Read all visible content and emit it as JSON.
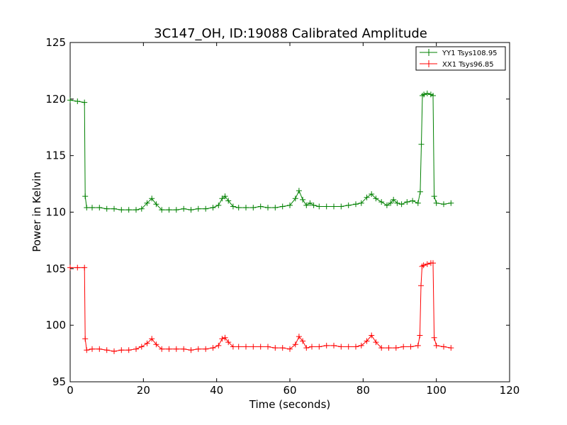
{
  "chart_data": {
    "type": "line",
    "title": "3C147_OH, ID:19088 Calibrated Amplitude",
    "xlabel": "Time (seconds)",
    "ylabel": "Power in Kelvin",
    "xlim": [
      0,
      120
    ],
    "ylim": [
      95,
      125
    ],
    "xticks": [
      "0",
      "20",
      "40",
      "60",
      "80",
      "100",
      "120"
    ],
    "yticks": [
      "95",
      "100",
      "105",
      "110",
      "115",
      "120",
      "125"
    ],
    "grid": false,
    "legend_position": "top-right",
    "marker": "+",
    "series": [
      {
        "name": "YY1 Tsys108.95",
        "color": "#008000",
        "x": [
          0,
          2,
          3.9,
          4.1,
          4.5,
          6,
          8,
          10,
          12,
          14,
          16,
          18,
          19.5,
          21,
          22.3,
          23.5,
          25,
          27,
          29,
          31,
          33,
          35,
          37,
          39,
          40.5,
          41.5,
          42.3,
          43.2,
          44.5,
          46,
          48,
          50,
          52,
          54,
          56,
          58,
          60,
          61.5,
          62.5,
          63.5,
          64.5,
          65.5,
          66.5,
          68,
          70,
          72,
          74,
          76,
          78,
          79.5,
          81,
          82.3,
          83.5,
          85,
          86.5,
          87.5,
          88.3,
          89.3,
          90.5,
          92,
          93.5,
          95,
          95.6,
          95.9,
          96.2,
          96.6,
          97.5,
          98.5,
          99.1,
          99.4,
          100,
          102,
          104
        ],
        "values": [
          119.9,
          119.8,
          119.7,
          111.4,
          110.4,
          110.4,
          110.4,
          110.3,
          110.3,
          110.2,
          110.2,
          110.2,
          110.3,
          110.8,
          111.2,
          110.7,
          110.2,
          110.2,
          110.2,
          110.3,
          110.2,
          110.3,
          110.3,
          110.4,
          110.6,
          111.2,
          111.4,
          111.0,
          110.5,
          110.4,
          110.4,
          110.4,
          110.5,
          110.4,
          110.4,
          110.5,
          110.6,
          111.2,
          111.9,
          111.1,
          110.6,
          110.8,
          110.6,
          110.5,
          110.5,
          110.5,
          110.5,
          110.6,
          110.7,
          110.8,
          111.3,
          111.6,
          111.2,
          110.9,
          110.6,
          110.8,
          111.1,
          110.8,
          110.7,
          110.9,
          111.0,
          110.8,
          111.8,
          116.0,
          120.3,
          120.4,
          120.5,
          120.4,
          120.3,
          111.4,
          110.8,
          110.7,
          110.8
        ]
      },
      {
        "name": "XX1 Tsys96.85",
        "color": "#ff0000",
        "x": [
          0,
          2,
          3.9,
          4.1,
          4.5,
          6,
          8,
          10,
          12,
          14,
          16,
          18,
          19.5,
          21,
          22.3,
          23.5,
          25,
          27,
          29,
          31,
          33,
          35,
          37,
          39,
          40.5,
          41.5,
          42.3,
          43.2,
          44.5,
          46,
          48,
          50,
          52,
          54,
          56,
          58,
          60,
          61.5,
          62.5,
          63.5,
          64.5,
          66,
          68,
          70,
          72,
          74,
          76,
          78,
          79.5,
          81,
          82.3,
          83.5,
          85,
          87,
          89,
          91,
          93,
          95,
          95.5,
          95.8,
          96.1,
          96.5,
          97.5,
          98.5,
          99.1,
          99.4,
          100,
          102,
          104
        ],
        "values": [
          105.1,
          105.1,
          105.1,
          98.8,
          97.8,
          97.9,
          97.9,
          97.8,
          97.7,
          97.8,
          97.8,
          97.9,
          98.1,
          98.4,
          98.8,
          98.3,
          97.9,
          97.9,
          97.9,
          97.9,
          97.8,
          97.9,
          97.9,
          98.0,
          98.2,
          98.8,
          98.9,
          98.5,
          98.1,
          98.1,
          98.1,
          98.1,
          98.1,
          98.1,
          98.0,
          98.0,
          97.9,
          98.3,
          99.0,
          98.6,
          98.0,
          98.1,
          98.1,
          98.2,
          98.2,
          98.1,
          98.1,
          98.1,
          98.2,
          98.6,
          99.1,
          98.5,
          98.0,
          98.0,
          98.0,
          98.1,
          98.1,
          98.2,
          99.1,
          103.5,
          105.2,
          105.3,
          105.4,
          105.5,
          105.5,
          98.9,
          98.2,
          98.1,
          98.0
        ]
      }
    ]
  }
}
